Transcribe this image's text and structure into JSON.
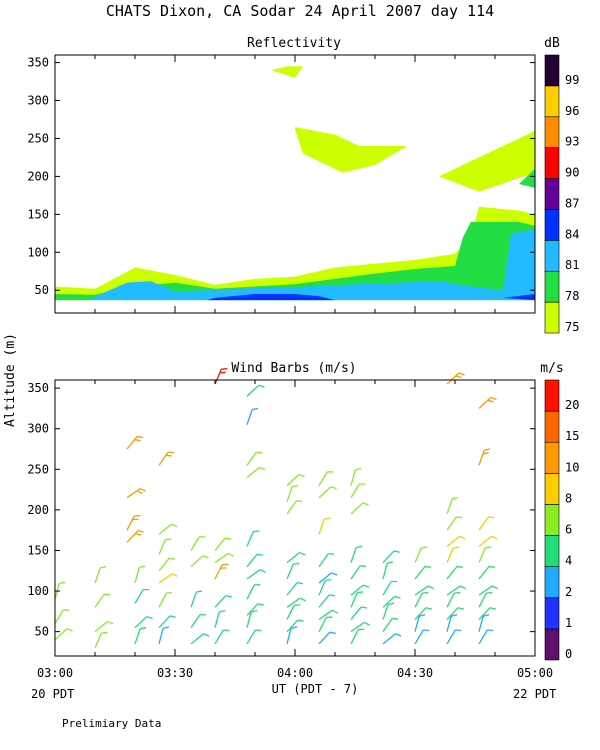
{
  "figure": {
    "title": "CHATS Dixon, CA  Sodar  24 April 2007  day 114",
    "y_axis_label": "Altitude (m)",
    "x_axis_label": "UT  (PDT - 7)",
    "left_note": "20 PDT",
    "right_note": "22 PDT",
    "footer": "Prelimiary Data",
    "x_ticks": [
      "03:00",
      "03:30",
      "04:00",
      "04:30",
      "05:00"
    ]
  },
  "chart_data": [
    {
      "type": "heatmap",
      "title": "Reflectivity",
      "x_axis": {
        "start": "03:00",
        "end": "05:00",
        "unit": "UT"
      },
      "ylim": [
        20,
        360
      ],
      "yticks": [
        50,
        100,
        150,
        200,
        250,
        300,
        350
      ],
      "colorbar": {
        "unit": "dB",
        "levels": [
          75,
          78,
          81,
          84,
          87,
          90,
          93,
          96,
          99
        ],
        "colors": [
          "#ccff00",
          "#22dd44",
          "#22bbff",
          "#0033ff",
          "#660099",
          "#ff0000",
          "#ff8c00",
          "#ffcc00",
          "#220033"
        ]
      },
      "regions": [
        {
          "level": 75,
          "points": [
            [
              0,
              55
            ],
            [
              5,
              52
            ],
            [
              10,
              80
            ],
            [
              15,
              70
            ],
            [
              20,
              57
            ],
            [
              25,
              65
            ],
            [
              30,
              68
            ],
            [
              35,
              80
            ],
            [
              40,
              85
            ],
            [
              45,
              90
            ],
            [
              50,
              98
            ],
            [
              52,
              120
            ],
            [
              53,
              160
            ],
            [
              58,
              155
            ],
            [
              60,
              150
            ],
            [
              60,
              37
            ],
            [
              0,
              37
            ]
          ]
        },
        {
          "level": 75,
          "points": [
            [
              48,
              200
            ],
            [
              56,
              240
            ],
            [
              60,
              260
            ],
            [
              60,
              205
            ],
            [
              53,
              180
            ]
          ]
        },
        {
          "level": 75,
          "points": [
            [
              30,
              265
            ],
            [
              35,
              255
            ],
            [
              38,
              240
            ],
            [
              44,
              240
            ],
            [
              40,
              215
            ],
            [
              36,
              205
            ],
            [
              31,
              230
            ],
            [
              30,
              262
            ]
          ]
        },
        {
          "level": 75,
          "points": [
            [
              29,
              345
            ],
            [
              31,
              345
            ],
            [
              30,
              330
            ],
            [
              27,
              340
            ]
          ]
        },
        {
          "level": 78,
          "points": [
            [
              0,
              45
            ],
            [
              5,
              44
            ],
            [
              10,
              55
            ],
            [
              15,
              60
            ],
            [
              20,
              52
            ],
            [
              25,
              55
            ],
            [
              30,
              58
            ],
            [
              35,
              65
            ],
            [
              40,
              72
            ],
            [
              45,
              78
            ],
            [
              50,
              82
            ],
            [
              51,
              120
            ],
            [
              52,
              140
            ],
            [
              58,
              140
            ],
            [
              60,
              135
            ],
            [
              60,
              37
            ],
            [
              0,
              37
            ]
          ]
        },
        {
          "level": 78,
          "points": [
            [
              59,
              200
            ],
            [
              60,
              210
            ],
            [
              60,
              185
            ],
            [
              58,
              190
            ]
          ]
        },
        {
          "level": 81,
          "points": [
            [
              4,
              37
            ],
            [
              9,
              60
            ],
            [
              12,
              62
            ],
            [
              15,
              48
            ],
            [
              22,
              52
            ],
            [
              30,
              54
            ],
            [
              38,
              58
            ],
            [
              48,
              62
            ],
            [
              52,
              55
            ],
            [
              56,
              50
            ],
            [
              57,
              125
            ],
            [
              60,
              130
            ],
            [
              60,
              37
            ]
          ]
        },
        {
          "level": 84,
          "points": [
            [
              20,
              40
            ],
            [
              25,
              45
            ],
            [
              30,
              45
            ],
            [
              33,
              42
            ],
            [
              35,
              37
            ],
            [
              19,
              37
            ]
          ]
        },
        {
          "level": 84,
          "points": [
            [
              56,
              40
            ],
            [
              60,
              45
            ],
            [
              60,
              37
            ]
          ]
        }
      ]
    },
    {
      "type": "scatter",
      "title": "Wind Barbs (m/s)",
      "x_axis": {
        "start": "03:00",
        "end": "05:00",
        "unit": "UT"
      },
      "ylim": [
        20,
        360
      ],
      "yticks": [
        50,
        100,
        150,
        200,
        250,
        300,
        350
      ],
      "colorbar": {
        "unit": "m/s",
        "levels": [
          0,
          1,
          2,
          4,
          6,
          8,
          10,
          15,
          20
        ],
        "colors": [
          "#5e0f6a",
          "#2233ff",
          "#22aaff",
          "#22dd77",
          "#88ee22",
          "#ffcc00",
          "#ff9900",
          "#ff6600",
          "#ff1100"
        ]
      },
      "barbs": [
        {
          "t": 0,
          "z": 90,
          "speed": 6
        },
        {
          "t": 0,
          "z": 60,
          "speed": 6
        },
        {
          "t": 0,
          "z": 40,
          "speed": 6
        },
        {
          "t": 5,
          "z": 110,
          "speed": 6
        },
        {
          "t": 5,
          "z": 80,
          "speed": 6
        },
        {
          "t": 5,
          "z": 50,
          "speed": 6
        },
        {
          "t": 5,
          "z": 30,
          "speed": 6
        },
        {
          "t": 9,
          "z": 275,
          "speed": 10
        },
        {
          "t": 9,
          "z": 215,
          "speed": 10
        },
        {
          "t": 9,
          "z": 175,
          "speed": 10
        },
        {
          "t": 9,
          "z": 160,
          "speed": 10
        },
        {
          "t": 10,
          "z": 110,
          "speed": 6
        },
        {
          "t": 10,
          "z": 85,
          "speed": 4
        },
        {
          "t": 10,
          "z": 55,
          "speed": 4
        },
        {
          "t": 10,
          "z": 35,
          "speed": 4
        },
        {
          "t": 13,
          "z": 255,
          "speed": 10
        },
        {
          "t": 13,
          "z": 170,
          "speed": 6
        },
        {
          "t": 13,
          "z": 145,
          "speed": 6
        },
        {
          "t": 13,
          "z": 125,
          "speed": 6
        },
        {
          "t": 13,
          "z": 110,
          "speed": 8
        },
        {
          "t": 13,
          "z": 80,
          "speed": 6
        },
        {
          "t": 13,
          "z": 55,
          "speed": 4
        },
        {
          "t": 13,
          "z": 35,
          "speed": 2
        },
        {
          "t": 17,
          "z": 150,
          "speed": 6
        },
        {
          "t": 17,
          "z": 130,
          "speed": 6
        },
        {
          "t": 17,
          "z": 80,
          "speed": 4
        },
        {
          "t": 17,
          "z": 55,
          "speed": 4
        },
        {
          "t": 17,
          "z": 35,
          "speed": 4
        },
        {
          "t": 20,
          "z": 355,
          "speed": 20
        },
        {
          "t": 20,
          "z": 150,
          "speed": 6
        },
        {
          "t": 20,
          "z": 135,
          "speed": 6
        },
        {
          "t": 20,
          "z": 115,
          "speed": 10
        },
        {
          "t": 20,
          "z": 80,
          "speed": 4
        },
        {
          "t": 20,
          "z": 55,
          "speed": 4
        },
        {
          "t": 20,
          "z": 35,
          "speed": 4
        },
        {
          "t": 24,
          "z": 340,
          "speed": 4
        },
        {
          "t": 24,
          "z": 305,
          "speed": 2
        },
        {
          "t": 24,
          "z": 255,
          "speed": 6
        },
        {
          "t": 24,
          "z": 240,
          "speed": 6
        },
        {
          "t": 24,
          "z": 155,
          "speed": 4
        },
        {
          "t": 24,
          "z": 130,
          "speed": 4
        },
        {
          "t": 24,
          "z": 115,
          "speed": 4
        },
        {
          "t": 24,
          "z": 90,
          "speed": 4
        },
        {
          "t": 24,
          "z": 70,
          "speed": 4
        },
        {
          "t": 24,
          "z": 55,
          "speed": 4
        },
        {
          "t": 24,
          "z": 35,
          "speed": 4
        },
        {
          "t": 29,
          "z": 230,
          "speed": 6
        },
        {
          "t": 29,
          "z": 210,
          "speed": 6
        },
        {
          "t": 29,
          "z": 195,
          "speed": 6
        },
        {
          "t": 29,
          "z": 135,
          "speed": 4
        },
        {
          "t": 29,
          "z": 115,
          "speed": 4
        },
        {
          "t": 29,
          "z": 95,
          "speed": 4
        },
        {
          "t": 29,
          "z": 80,
          "speed": 4
        },
        {
          "t": 29,
          "z": 65,
          "speed": 4
        },
        {
          "t": 29,
          "z": 50,
          "speed": 4
        },
        {
          "t": 29,
          "z": 35,
          "speed": 2
        },
        {
          "t": 33,
          "z": 230,
          "speed": 6
        },
        {
          "t": 33,
          "z": 215,
          "speed": 6
        },
        {
          "t": 33,
          "z": 170,
          "speed": 8
        },
        {
          "t": 33,
          "z": 130,
          "speed": 4
        },
        {
          "t": 33,
          "z": 110,
          "speed": 2
        },
        {
          "t": 33,
          "z": 95,
          "speed": 4
        },
        {
          "t": 33,
          "z": 80,
          "speed": 4
        },
        {
          "t": 33,
          "z": 65,
          "speed": 4
        },
        {
          "t": 33,
          "z": 50,
          "speed": 4
        },
        {
          "t": 33,
          "z": 35,
          "speed": 2
        },
        {
          "t": 37,
          "z": 230,
          "speed": 6
        },
        {
          "t": 37,
          "z": 215,
          "speed": 6
        },
        {
          "t": 37,
          "z": 195,
          "speed": 6
        },
        {
          "t": 37,
          "z": 135,
          "speed": 4
        },
        {
          "t": 37,
          "z": 115,
          "speed": 4
        },
        {
          "t": 37,
          "z": 95,
          "speed": 4
        },
        {
          "t": 37,
          "z": 80,
          "speed": 4
        },
        {
          "t": 37,
          "z": 65,
          "speed": 4
        },
        {
          "t": 37,
          "z": 50,
          "speed": 4
        },
        {
          "t": 37,
          "z": 35,
          "speed": 4
        },
        {
          "t": 41,
          "z": 135,
          "speed": 4
        },
        {
          "t": 41,
          "z": 115,
          "speed": 4
        },
        {
          "t": 41,
          "z": 95,
          "speed": 4
        },
        {
          "t": 41,
          "z": 80,
          "speed": 4
        },
        {
          "t": 41,
          "z": 65,
          "speed": 4
        },
        {
          "t": 41,
          "z": 50,
          "speed": 4
        },
        {
          "t": 41,
          "z": 35,
          "speed": 2
        },
        {
          "t": 45,
          "z": 135,
          "speed": 6
        },
        {
          "t": 45,
          "z": 115,
          "speed": 4
        },
        {
          "t": 45,
          "z": 95,
          "speed": 4
        },
        {
          "t": 45,
          "z": 80,
          "speed": 4
        },
        {
          "t": 45,
          "z": 65,
          "speed": 4
        },
        {
          "t": 45,
          "z": 50,
          "speed": 2
        },
        {
          "t": 45,
          "z": 35,
          "speed": 2
        },
        {
          "t": 49,
          "z": 355,
          "speed": 10
        },
        {
          "t": 49,
          "z": 195,
          "speed": 6
        },
        {
          "t": 49,
          "z": 175,
          "speed": 6
        },
        {
          "t": 49,
          "z": 155,
          "speed": 8
        },
        {
          "t": 49,
          "z": 135,
          "speed": 8
        },
        {
          "t": 49,
          "z": 115,
          "speed": 4
        },
        {
          "t": 49,
          "z": 95,
          "speed": 4
        },
        {
          "t": 49,
          "z": 80,
          "speed": 4
        },
        {
          "t": 49,
          "z": 65,
          "speed": 4
        },
        {
          "t": 49,
          "z": 50,
          "speed": 2
        },
        {
          "t": 49,
          "z": 35,
          "speed": 2
        },
        {
          "t": 53,
          "z": 325,
          "speed": 10
        },
        {
          "t": 53,
          "z": 255,
          "speed": 10
        },
        {
          "t": 53,
          "z": 175,
          "speed": 8
        },
        {
          "t": 53,
          "z": 155,
          "speed": 8
        },
        {
          "t": 53,
          "z": 135,
          "speed": 6
        },
        {
          "t": 53,
          "z": 115,
          "speed": 4
        },
        {
          "t": 53,
          "z": 95,
          "speed": 4
        },
        {
          "t": 53,
          "z": 80,
          "speed": 4
        },
        {
          "t": 53,
          "z": 65,
          "speed": 4
        },
        {
          "t": 53,
          "z": 50,
          "speed": 2
        },
        {
          "t": 53,
          "z": 35,
          "speed": 2
        }
      ]
    }
  ]
}
